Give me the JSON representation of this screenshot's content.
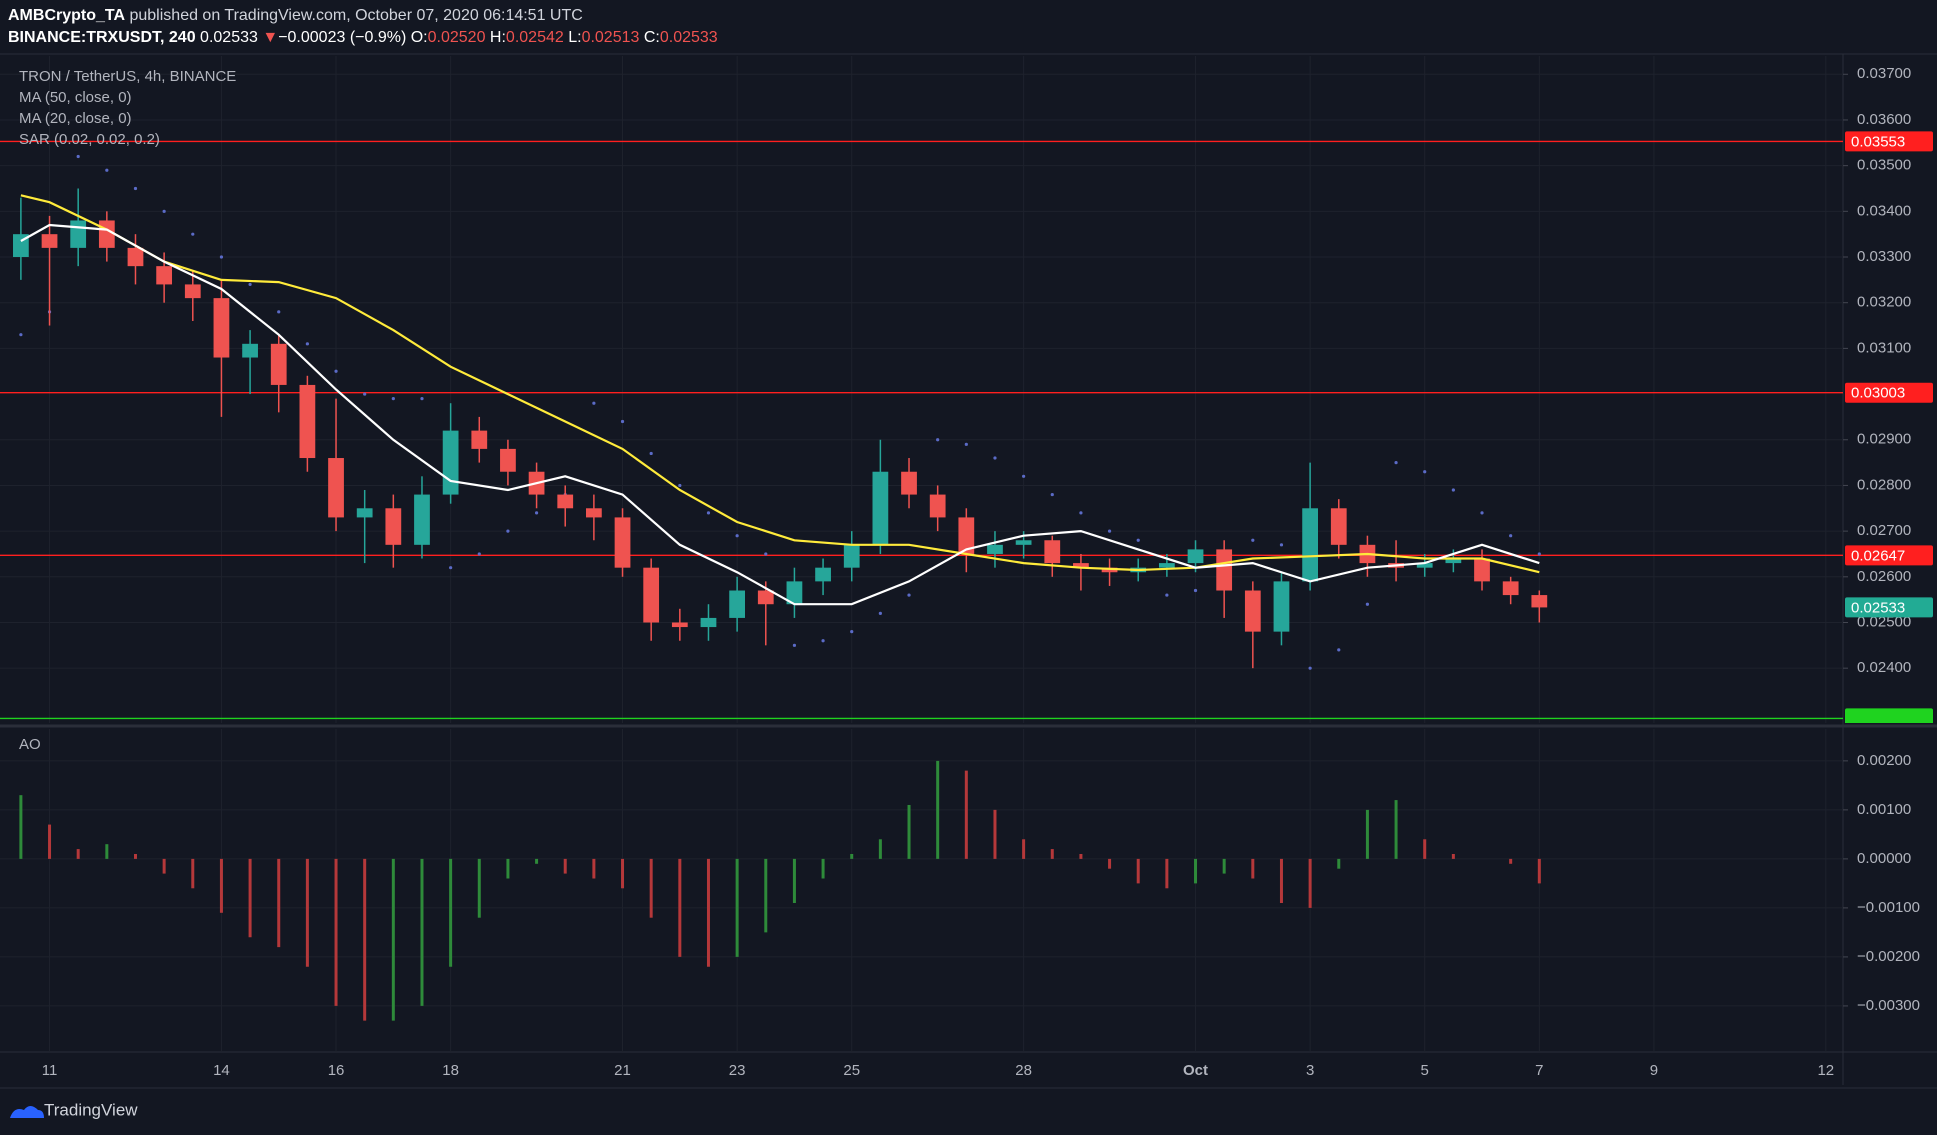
{
  "header": {
    "author": "AMBCrypto_TA",
    "published": "published on TradingView.com, October 07, 2020 06:14:51 UTC",
    "symbol": "BINANCE:TRXUSDT, 240",
    "last": "0.02533",
    "arrow": "▼",
    "change": "−0.00023 (−0.9%)",
    "ohlc": [
      {
        "label": "O:",
        "value": "0.02520"
      },
      {
        "label": "H:",
        "value": "0.02542"
      },
      {
        "label": "L:",
        "value": "0.02513"
      },
      {
        "label": "C:",
        "value": "0.02533"
      }
    ]
  },
  "chart_data": [
    {
      "type": "candlestick",
      "title": "TRON / TetherUS, 4h, BINANCE",
      "up_color": "#26a69a",
      "down_color": "#ef5350",
      "x": [
        -0.5,
        0,
        0.5,
        1,
        1.5,
        2,
        2.5,
        3,
        3.5,
        4,
        4.5,
        5,
        5.5,
        6,
        6.5,
        7,
        7.5,
        8,
        8.5,
        9,
        9.5,
        10,
        10.5,
        11,
        11.5,
        12,
        12.5,
        13,
        13.5,
        14,
        14.5,
        15,
        15.5,
        16,
        16.5,
        17,
        17.5,
        18,
        18.5,
        19,
        19.5,
        20,
        20.5,
        21,
        21.5,
        22,
        22.5,
        23,
        23.5,
        24,
        24.5,
        25,
        25.5,
        26
      ],
      "open": [
        0.033,
        0.0335,
        0.0332,
        0.0338,
        0.0332,
        0.0328,
        0.0324,
        0.0321,
        0.0308,
        0.0311,
        0.0302,
        0.0286,
        0.0273,
        0.0275,
        0.0267,
        0.0278,
        0.0292,
        0.0288,
        0.0283,
        0.0278,
        0.0275,
        0.0273,
        0.0262,
        0.025,
        0.0249,
        0.0251,
        0.0257,
        0.0254,
        0.0259,
        0.0262,
        0.0267,
        0.0283,
        0.0278,
        0.0273,
        0.0265,
        0.0267,
        0.0268,
        0.0263,
        0.0262,
        0.0261,
        0.0262,
        0.0263,
        0.0266,
        0.0257,
        0.0248,
        0.0259,
        0.0275,
        0.0267,
        0.0263,
        0.0262,
        0.0263,
        0.0264,
        0.0259,
        0.0256
      ],
      "high": [
        0.0343,
        0.0339,
        0.0345,
        0.034,
        0.0335,
        0.0331,
        0.0327,
        0.0325,
        0.0314,
        0.0313,
        0.0304,
        0.0299,
        0.0279,
        0.0278,
        0.0282,
        0.0298,
        0.0295,
        0.029,
        0.0285,
        0.028,
        0.0278,
        0.0275,
        0.0264,
        0.0253,
        0.0254,
        0.026,
        0.0259,
        0.0262,
        0.0264,
        0.027,
        0.029,
        0.0286,
        0.028,
        0.0275,
        0.027,
        0.027,
        0.0269,
        0.0265,
        0.0264,
        0.0264,
        0.0265,
        0.0268,
        0.0268,
        0.0259,
        0.0261,
        0.0285,
        0.0277,
        0.0269,
        0.0268,
        0.0265,
        0.0266,
        0.0266,
        0.026,
        0.0257
      ],
      "low": [
        0.0325,
        0.0315,
        0.0328,
        0.0329,
        0.0324,
        0.032,
        0.0316,
        0.0295,
        0.03,
        0.0296,
        0.0283,
        0.027,
        0.0263,
        0.0262,
        0.0264,
        0.0276,
        0.0285,
        0.028,
        0.0275,
        0.0271,
        0.0268,
        0.026,
        0.0246,
        0.0246,
        0.0246,
        0.0248,
        0.0245,
        0.0251,
        0.0256,
        0.0259,
        0.0265,
        0.0275,
        0.027,
        0.0261,
        0.0262,
        0.0264,
        0.026,
        0.0257,
        0.0258,
        0.0259,
        0.026,
        0.0261,
        0.0251,
        0.024,
        0.0245,
        0.0257,
        0.0264,
        0.026,
        0.0259,
        0.026,
        0.0261,
        0.0257,
        0.0254,
        0.025
      ],
      "close": [
        0.0335,
        0.0332,
        0.0338,
        0.0332,
        0.0328,
        0.0324,
        0.0321,
        0.0308,
        0.0311,
        0.0302,
        0.0286,
        0.0273,
        0.0275,
        0.0267,
        0.0278,
        0.0292,
        0.0288,
        0.0283,
        0.0278,
        0.0275,
        0.0273,
        0.0262,
        0.025,
        0.0249,
        0.0251,
        0.0257,
        0.0254,
        0.0259,
        0.0262,
        0.0267,
        0.0283,
        0.0278,
        0.0273,
        0.0265,
        0.0267,
        0.0268,
        0.0263,
        0.0262,
        0.0261,
        0.0262,
        0.0263,
        0.0266,
        0.0257,
        0.0248,
        0.0259,
        0.0275,
        0.0267,
        0.0263,
        0.0262,
        0.0263,
        0.0264,
        0.0259,
        0.0256,
        0.02533
      ],
      "series": [
        {
          "name": "MA (50, close, 0)",
          "color": "#ffeb3b",
          "x": [
            -0.5,
            0,
            1,
            2,
            3,
            4,
            5,
            6,
            7,
            8,
            9,
            10,
            11,
            12,
            13,
            14,
            15,
            16,
            17,
            18,
            19,
            20,
            21,
            22,
            23,
            24,
            25,
            26
          ],
          "values": [
            0.03435,
            0.0342,
            0.0336,
            0.0329,
            0.0325,
            0.03245,
            0.0321,
            0.0314,
            0.0306,
            0.03,
            0.0294,
            0.0288,
            0.0279,
            0.0272,
            0.0268,
            0.0267,
            0.0267,
            0.0265,
            0.0263,
            0.0262,
            0.02615,
            0.0262,
            0.0264,
            0.02645,
            0.0265,
            0.0264,
            0.0264,
            0.0261
          ]
        },
        {
          "name": "MA (20, close, 0)",
          "color": "#ffffff",
          "x": [
            -0.5,
            0,
            1,
            2,
            3,
            4,
            5,
            6,
            7,
            8,
            9,
            10,
            11,
            12,
            13,
            14,
            15,
            16,
            17,
            18,
            19,
            20,
            21,
            22,
            23,
            24,
            25,
            26
          ],
          "values": [
            0.03335,
            0.0337,
            0.0336,
            0.0329,
            0.0323,
            0.0313,
            0.0301,
            0.029,
            0.0281,
            0.0279,
            0.0282,
            0.0278,
            0.0267,
            0.0261,
            0.0254,
            0.0254,
            0.0259,
            0.0266,
            0.0269,
            0.027,
            0.0266,
            0.0262,
            0.0263,
            0.0259,
            0.0262,
            0.0263,
            0.0267,
            0.0263
          ]
        }
      ],
      "sar": {
        "name": "SAR (0.02, 0.02, 0.2)",
        "color": "#5b6bc7",
        "values": [
          0.0313,
          0.0318,
          0.0352,
          0.0349,
          0.0345,
          0.034,
          0.0335,
          0.033,
          0.0324,
          0.0318,
          0.0311,
          0.0305,
          0.03,
          0.0299,
          0.0299,
          0.0262,
          0.0265,
          0.027,
          0.0274,
          0.0278,
          0.0298,
          0.0294,
          0.0287,
          0.028,
          0.0274,
          0.0269,
          0.0265,
          0.0245,
          0.0246,
          0.0248,
          0.0252,
          0.0256,
          0.029,
          0.0289,
          0.0286,
          0.0282,
          0.0278,
          0.0274,
          0.027,
          0.0268,
          0.0256,
          0.0257,
          0.0258,
          0.0268,
          0.0267,
          0.024,
          0.0244,
          0.0254,
          0.0285,
          0.0283,
          0.0279,
          0.0274,
          0.0269,
          0.0265
        ]
      },
      "levels": [
        {
          "value": 0.03553,
          "label": "0.03553",
          "color": "#ff1f1f"
        },
        {
          "value": 0.03003,
          "label": "0.03003",
          "color": "#ff1f1f"
        },
        {
          "value": 0.02647,
          "label": "0.02647",
          "color": "#ff1f1f"
        },
        {
          "value": 0.0229,
          "color": "#1fd31f"
        }
      ],
      "last_price": {
        "value": 0.02533,
        "label": "0.02533",
        "color": "#22ab94"
      },
      "ylim": [
        0.0228,
        0.0374
      ],
      "yticks": [
        {
          "value": 0.037,
          "label": "0.03700"
        },
        {
          "value": 0.036,
          "label": "0.03600"
        },
        {
          "value": 0.035,
          "label": "0.03500"
        },
        {
          "value": 0.034,
          "label": "0.03400"
        },
        {
          "value": 0.033,
          "label": "0.03300"
        },
        {
          "value": 0.032,
          "label": "0.03200"
        },
        {
          "value": 0.031,
          "label": "0.03100"
        },
        {
          "value": 0.029,
          "label": "0.02900"
        },
        {
          "value": 0.028,
          "label": "0.02800"
        },
        {
          "value": 0.027,
          "label": "0.02700"
        },
        {
          "value": 0.026,
          "label": "0.02600"
        },
        {
          "value": 0.025,
          "label": "0.02500"
        },
        {
          "value": 0.024,
          "label": "0.02400"
        }
      ],
      "xlim": [
        -0.69,
        31.3
      ],
      "xticks": [
        {
          "value": 0,
          "label": "11"
        },
        {
          "value": 3,
          "label": "14"
        },
        {
          "value": 5,
          "label": "16"
        },
        {
          "value": 7,
          "label": "18"
        },
        {
          "value": 10,
          "label": "21"
        },
        {
          "value": 12,
          "label": "23"
        },
        {
          "value": 14,
          "label": "25"
        },
        {
          "value": 17,
          "label": "28"
        },
        {
          "value": 20,
          "label": "Oct"
        },
        {
          "value": 22,
          "label": "3"
        },
        {
          "value": 24,
          "label": "5"
        },
        {
          "value": 26,
          "label": "7"
        },
        {
          "value": 28,
          "label": "9"
        },
        {
          "value": 31,
          "label": "12"
        }
      ],
      "grid": true
    },
    {
      "type": "bar",
      "title": "AO",
      "up_color": "#2e8b3a",
      "down_color": "#b5383a",
      "x": [
        -0.5,
        0,
        0.5,
        1,
        1.5,
        2,
        2.5,
        3,
        3.5,
        4,
        4.5,
        5,
        5.5,
        6,
        6.5,
        7,
        7.5,
        8,
        8.5,
        9,
        9.5,
        10,
        10.5,
        11,
        11.5,
        12,
        12.5,
        13,
        13.5,
        14,
        14.5,
        15,
        15.5,
        16,
        16.5,
        17,
        17.5,
        18,
        18.5,
        19,
        19.5,
        20,
        20.5,
        21,
        21.5,
        22,
        22.5,
        23,
        23.5,
        24,
        24.5,
        25,
        25.5,
        26
      ],
      "values": [
        0.0013,
        0.0007,
        0.0002,
        0.0003,
        0.0001,
        -0.0003,
        -0.0006,
        -0.0011,
        -0.0016,
        -0.0018,
        -0.0022,
        -0.003,
        -0.0033,
        -0.0033,
        -0.003,
        -0.0022,
        -0.0012,
        -0.0004,
        -0.0001,
        -0.0003,
        -0.0004,
        -0.0006,
        -0.0012,
        -0.002,
        -0.0022,
        -0.002,
        -0.0015,
        -0.0009,
        -0.0004,
        0.0001,
        0.0004,
        0.0011,
        0.002,
        0.0018,
        0.001,
        0.0004,
        0.0002,
        0.0001,
        -0.0002,
        -0.0005,
        -0.0006,
        -0.0005,
        -0.0003,
        -0.0004,
        -0.0009,
        -0.001,
        -0.0002,
        0.001,
        0.0012,
        0.0004,
        0.0001,
        0,
        -0.0001,
        -0.0005
      ],
      "ylim": [
        -0.00394,
        0.00265
      ],
      "xlim": [
        -0.69,
        31.3
      ],
      "yticks": [
        {
          "value": 0.002,
          "label": "0.00200"
        },
        {
          "value": 0.001,
          "label": "0.00100"
        },
        {
          "value": 0,
          "label": "0.00000"
        },
        {
          "value": -0.001,
          "label": "−0.00100"
        },
        {
          "value": -0.002,
          "label": "−0.00200"
        },
        {
          "value": -0.003,
          "label": "−0.00300"
        }
      ]
    }
  ],
  "footer": {
    "brand": "TradingView"
  }
}
